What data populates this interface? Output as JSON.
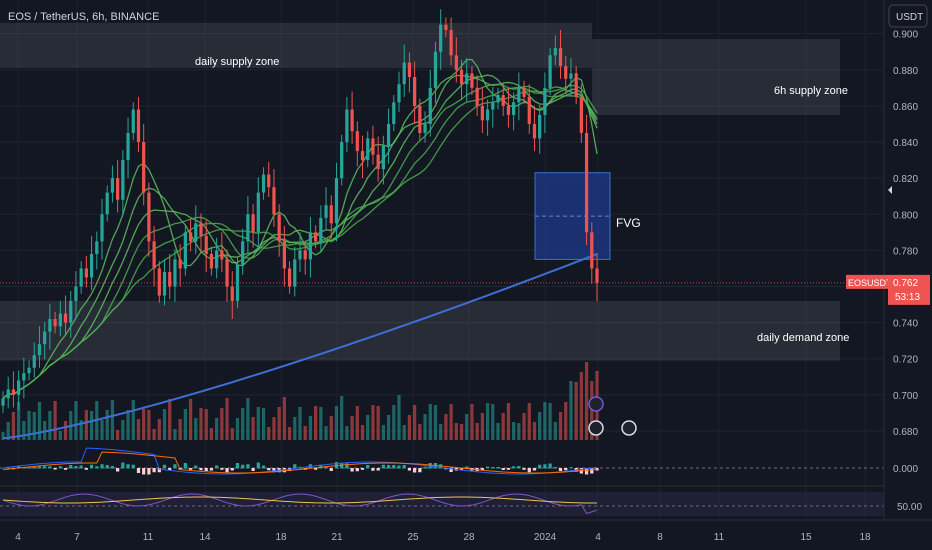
{
  "header": {
    "symbol_title": "EOS / TetherUS, 6h, BINANCE",
    "currency_button": "USDT"
  },
  "price_badge": {
    "symbol": "EOSUSDT",
    "price": "0.762",
    "countdown": "53:13"
  },
  "annotations": {
    "daily_supply": "daily supply zone",
    "h6_supply": "6h supply zone",
    "fvg": "FVG",
    "daily_demand": "daily demand zone"
  },
  "colors": {
    "background": "#131722",
    "bull": "#26a69a",
    "bear": "#ef5350",
    "ma200": "#3d6fd6",
    "ribbon_green": "#4caf50",
    "ribbon_red": "#b02a48",
    "fvg_fill": "#1e3a8a",
    "zone_fill": "#787b86"
  },
  "chart_data": [
    {
      "type": "candlestick",
      "title": "EOS / TetherUS, 6h, BINANCE",
      "y_axis_ticks": [
        "0.900",
        "0.880",
        "0.860",
        "0.840",
        "0.820",
        "0.800",
        "0.780",
        "0.760",
        "0.740",
        "0.720",
        "0.700",
        "0.680"
      ],
      "x_axis_ticks": [
        "4",
        "7",
        "11",
        "14",
        "18",
        "21",
        "25",
        "28",
        "2024",
        "4",
        "8",
        "11",
        "15",
        "18"
      ],
      "ylim": [
        0.675,
        0.912
      ],
      "last_price": 0.762,
      "zones": [
        {
          "label": "daily supply zone",
          "y": [
            0.881,
            0.906
          ]
        },
        {
          "label": "6h supply zone",
          "y": [
            0.855,
            0.897
          ]
        },
        {
          "label": "FVG",
          "y": [
            0.775,
            0.823
          ],
          "mid": 0.799
        },
        {
          "label": "daily demand zone",
          "y": [
            0.719,
            0.752
          ]
        }
      ],
      "closes": [
        0.698,
        0.703,
        0.7,
        0.708,
        0.712,
        0.715,
        0.722,
        0.728,
        0.735,
        0.742,
        0.738,
        0.745,
        0.74,
        0.752,
        0.76,
        0.77,
        0.765,
        0.778,
        0.785,
        0.8,
        0.812,
        0.82,
        0.808,
        0.83,
        0.845,
        0.858,
        0.84,
        0.812,
        0.785,
        0.77,
        0.755,
        0.768,
        0.76,
        0.775,
        0.77,
        0.79,
        0.785,
        0.795,
        0.788,
        0.778,
        0.77,
        0.78,
        0.775,
        0.76,
        0.752,
        0.772,
        0.785,
        0.8,
        0.79,
        0.812,
        0.822,
        0.815,
        0.8,
        0.785,
        0.77,
        0.76,
        0.775,
        0.78,
        0.775,
        0.79,
        0.785,
        0.798,
        0.805,
        0.795,
        0.82,
        0.84,
        0.858,
        0.846,
        0.835,
        0.83,
        0.842,
        0.833,
        0.825,
        0.838,
        0.85,
        0.862,
        0.872,
        0.884,
        0.876,
        0.86,
        0.845,
        0.85,
        0.87,
        0.89,
        0.905,
        0.902,
        0.888,
        0.88,
        0.872,
        0.878,
        0.87,
        0.86,
        0.852,
        0.858,
        0.862,
        0.866,
        0.86,
        0.855,
        0.862,
        0.87,
        0.865,
        0.85,
        0.842,
        0.855,
        0.87,
        0.888,
        0.892,
        0.882,
        0.875,
        0.878,
        0.865,
        0.845,
        0.79,
        0.77,
        0.762
      ],
      "macd_ticks": [
        "0.000"
      ],
      "rsi_ticks": [
        "50.00"
      ]
    }
  ]
}
